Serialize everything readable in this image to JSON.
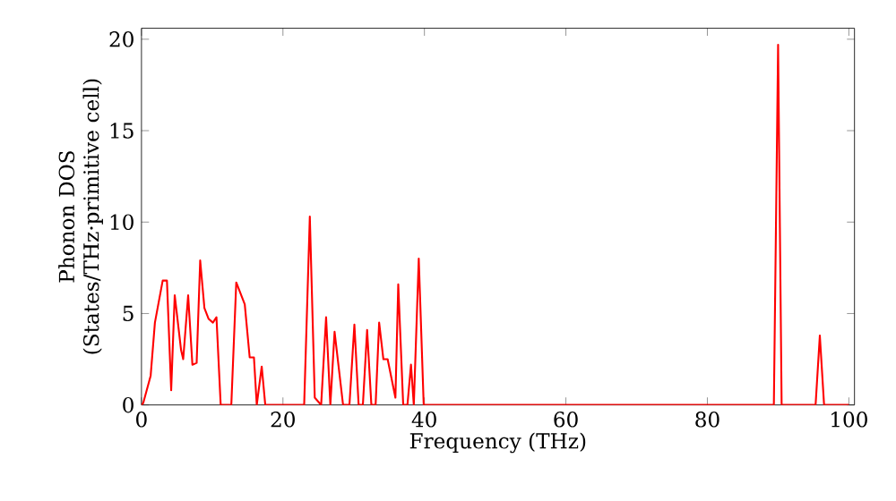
{
  "chart_data": {
    "type": "line",
    "xlabel": "Frequency (THz)",
    "ylabel": "Phonon DOS (States/THz·primitive cell)",
    "xlim": [
      0,
      100.8
    ],
    "ylim": [
      0,
      20.6
    ],
    "xticks": [
      0,
      20,
      40,
      60,
      80,
      100
    ],
    "yticks": [
      0,
      5,
      10,
      15,
      20
    ],
    "grid": false,
    "marker": "none",
    "line_style": "solid",
    "series": [
      {
        "color": "#ff0000",
        "x": [
          0,
          0.25,
          1.3,
          1.9,
          3.0,
          3.6,
          4.2,
          4.7,
          5.6,
          5.9,
          6.6,
          7.2,
          7.8,
          8.3,
          8.9,
          9.5,
          10.1,
          10.6,
          11.2,
          12.7,
          13.4,
          14.6,
          15.3,
          15.9,
          16.3,
          17.0,
          17.5,
          23.0,
          23.8,
          24.5,
          25.4,
          26.1,
          26.7,
          27.3,
          28.5,
          29.4,
          30.1,
          30.7,
          31.3,
          31.9,
          32.5,
          33.1,
          33.6,
          34.2,
          34.8,
          35.9,
          36.3,
          37.0,
          37.6,
          38.1,
          38.5,
          39.2,
          39.9,
          89.4,
          90.0,
          90.5,
          95.3,
          95.9,
          96.5,
          100
        ],
        "values": [
          0,
          0.1,
          1.6,
          4.5,
          6.8,
          6.8,
          0.8,
          6.0,
          3.0,
          2.5,
          6.0,
          2.2,
          2.3,
          7.9,
          5.3,
          4.7,
          4.5,
          4.8,
          0,
          0,
          6.7,
          5.5,
          2.6,
          2.6,
          0,
          2.1,
          0,
          0,
          10.3,
          0.4,
          0,
          4.8,
          0,
          4.0,
          0,
          0,
          4.4,
          0,
          0,
          4.1,
          0,
          0,
          4.5,
          2.5,
          2.5,
          0.4,
          6.6,
          0,
          0,
          2.2,
          0,
          8.0,
          0,
          0,
          19.7,
          0,
          0,
          3.8,
          0,
          0
        ]
      }
    ]
  }
}
